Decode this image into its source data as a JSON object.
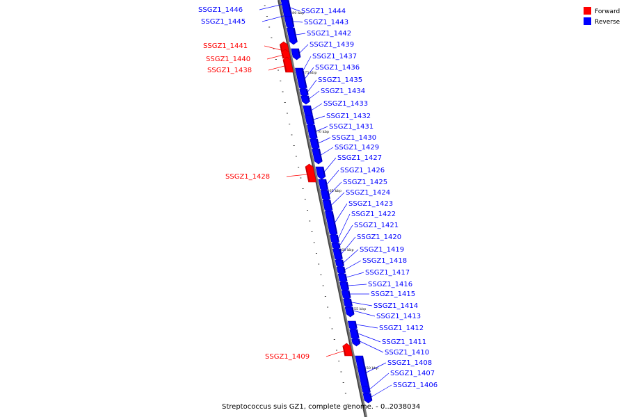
{
  "caption": "Streptococcus suis GZ1, complete genome. - 0..2038034",
  "legend": [
    {
      "label": "Forward",
      "color": "#ff0000"
    },
    {
      "label": "Reverse",
      "color": "#0000ff"
    }
  ],
  "colors": {
    "forward": "#ff0000",
    "reverse": "#0000ff",
    "forward_dark": "#c00000",
    "reverse_dark": "#0000b0",
    "backbone": "#7a7a7a"
  },
  "ticks": [
    "1480 kbp",
    "1475 kbp",
    "1470 kbp",
    "1465 kbp",
    "1460 kbp",
    "1455 kbp",
    "1450 kbp"
  ],
  "genes": [
    {
      "name": "SSGZ1_1446",
      "strand": "reverse"
    },
    {
      "name": "SSGZ1_1445",
      "strand": "reverse"
    },
    {
      "name": "SSGZ1_1444",
      "strand": "reverse"
    },
    {
      "name": "SSGZ1_1443",
      "strand": "reverse"
    },
    {
      "name": "SSGZ1_1442",
      "strand": "reverse"
    },
    {
      "name": "SSGZ1_1441",
      "strand": "forward"
    },
    {
      "name": "SSGZ1_1439",
      "strand": "reverse"
    },
    {
      "name": "SSGZ1_1440",
      "strand": "forward"
    },
    {
      "name": "SSGZ1_1437",
      "strand": "reverse"
    },
    {
      "name": "SSGZ1_1438",
      "strand": "forward"
    },
    {
      "name": "SSGZ1_1436",
      "strand": "reverse"
    },
    {
      "name": "SSGZ1_1435",
      "strand": "reverse"
    },
    {
      "name": "SSGZ1_1434",
      "strand": "reverse"
    },
    {
      "name": "SSGZ1_1433",
      "strand": "reverse"
    },
    {
      "name": "SSGZ1_1432",
      "strand": "reverse"
    },
    {
      "name": "SSGZ1_1431",
      "strand": "reverse"
    },
    {
      "name": "SSGZ1_1430",
      "strand": "reverse"
    },
    {
      "name": "SSGZ1_1429",
      "strand": "reverse"
    },
    {
      "name": "SSGZ1_1427",
      "strand": "reverse"
    },
    {
      "name": "SSGZ1_1428",
      "strand": "forward"
    },
    {
      "name": "SSGZ1_1426",
      "strand": "reverse"
    },
    {
      "name": "SSGZ1_1425",
      "strand": "reverse"
    },
    {
      "name": "SSGZ1_1424",
      "strand": "reverse"
    },
    {
      "name": "SSGZ1_1423",
      "strand": "reverse"
    },
    {
      "name": "SSGZ1_1422",
      "strand": "reverse"
    },
    {
      "name": "SSGZ1_1421",
      "strand": "reverse"
    },
    {
      "name": "SSGZ1_1420",
      "strand": "reverse"
    },
    {
      "name": "SSGZ1_1419",
      "strand": "reverse"
    },
    {
      "name": "SSGZ1_1418",
      "strand": "reverse"
    },
    {
      "name": "SSGZ1_1417",
      "strand": "reverse"
    },
    {
      "name": "SSGZ1_1416",
      "strand": "reverse"
    },
    {
      "name": "SSGZ1_1415",
      "strand": "reverse"
    },
    {
      "name": "SSGZ1_1414",
      "strand": "reverse"
    },
    {
      "name": "SSGZ1_1413",
      "strand": "reverse"
    },
    {
      "name": "SSGZ1_1412",
      "strand": "reverse"
    },
    {
      "name": "SSGZ1_1411",
      "strand": "reverse"
    },
    {
      "name": "SSGZ1_1410",
      "strand": "reverse"
    },
    {
      "name": "SSGZ1_1409",
      "strand": "forward"
    },
    {
      "name": "SSGZ1_1408",
      "strand": "reverse"
    },
    {
      "name": "SSGZ1_1407",
      "strand": "reverse"
    },
    {
      "name": "SSGZ1_1406",
      "strand": "reverse"
    }
  ]
}
